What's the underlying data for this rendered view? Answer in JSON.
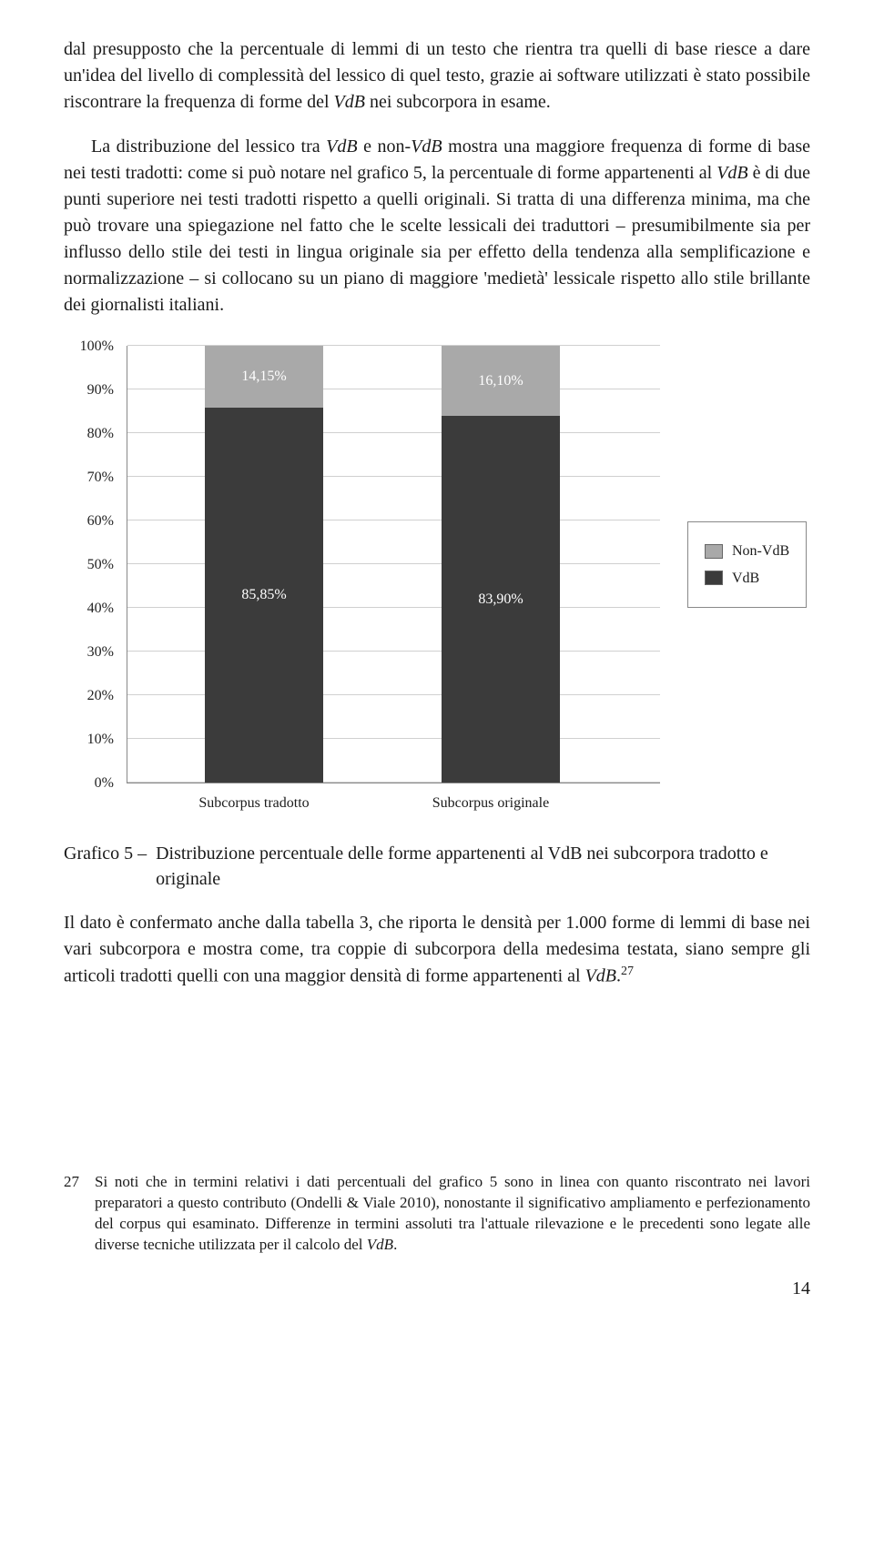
{
  "paragraph1_runs": [
    {
      "t": "dal presupposto che la percentuale di lemmi di un testo che rientra tra quelli di base riesce a dare un'idea del livello di complessità del lessico di quel testo, grazie ai software utilizzati è stato possibile riscontrare la frequenza di forme del ",
      "i": false
    },
    {
      "t": "VdB",
      "i": true
    },
    {
      "t": " nei subcorpora in esame.",
      "i": false
    }
  ],
  "paragraph2_runs": [
    {
      "t": "La distribuzione del lessico tra ",
      "i": false
    },
    {
      "t": "VdB",
      "i": true
    },
    {
      "t": " e non-",
      "i": false
    },
    {
      "t": "VdB",
      "i": true
    },
    {
      "t": " mostra una maggiore frequenza di forme di base nei testi tradotti: come si può notare nel grafico 5, la percentuale di forme appartenenti al ",
      "i": false
    },
    {
      "t": "VdB",
      "i": true
    },
    {
      "t": " è di due punti superiore nei testi tradotti rispetto a quelli originali. Si tratta di una differenza minima, ma che può trovare una spiegazione nel fatto che le scelte lessicali dei traduttori – presumibilmente sia per influsso dello stile dei testi in lingua originale sia per effetto della tendenza alla semplificazione e normalizzazione – si collocano su un piano di maggiore 'medietà' lessicale rispetto allo stile brillante dei giornalisti italiani.",
      "i": false
    }
  ],
  "chart": {
    "y_ticks": [
      "100%",
      "90%",
      "80%",
      "70%",
      "60%",
      "50%",
      "40%",
      "30%",
      "20%",
      "10%",
      "0%"
    ],
    "categories": [
      "Subcorpus tradotto",
      "Subcorpus originale"
    ],
    "series_top": {
      "name": "Non-VdB",
      "color": "#a9a9a9",
      "values": [
        14.15,
        16.1
      ],
      "labels": [
        "14,15%",
        "16,10%"
      ]
    },
    "series_bottom": {
      "name": "VdB",
      "color": "#3b3b3b",
      "values": [
        85.85,
        83.9
      ],
      "labels": [
        "85,85%",
        "83,90%"
      ]
    },
    "grid_color": "#d0d0d0",
    "border_color": "#888888",
    "legend_border": "#888888"
  },
  "caption_label": "Grafico 5 –",
  "caption_text": "Distribuzione percentuale delle forme appartenenti al VdB nei subcorpora tradotto e originale",
  "paragraph3_runs": [
    {
      "t": "Il dato è confermato anche dalla tabella 3, che riporta le densità per 1.000 forme di lemmi di base nei vari subcorpora e mostra come, tra coppie di subcorpora della medesima testata, siano sempre gli articoli tradotti quelli con una maggior densità di forme appartenenti al ",
      "i": false
    },
    {
      "t": "VdB",
      "i": true
    },
    {
      "t": ".",
      "i": false
    }
  ],
  "paragraph3_sup": "27",
  "footnote": {
    "num": "27",
    "runs": [
      {
        "t": "Si noti che in termini relativi i dati percentuali del grafico 5 sono in linea con quanto riscontrato nei lavori preparatori a questo contributo (Ondelli & Viale 2010), nonostante il significativo ampliamento e perfezionamento del corpus qui esaminato. Differenze in termini assoluti tra l'attuale rilevazione e le precedenti sono legate alle diverse tecniche utilizzata per il calcolo del ",
        "i": false
      },
      {
        "t": "VdB",
        "i": true
      },
      {
        "t": ".",
        "i": false
      }
    ]
  },
  "page_number": "14"
}
